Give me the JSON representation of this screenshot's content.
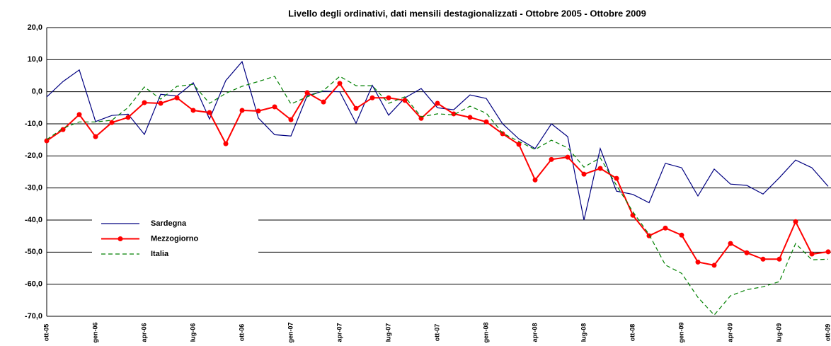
{
  "chart_data": {
    "type": "line",
    "title": "Livello degli ordinativi, dati mensili destagionalizzati - Ottobre 2005 - Ottobre 2009",
    "categories": [
      "ott-05",
      null,
      null,
      "gen-06",
      null,
      null,
      "apr-06",
      null,
      null,
      "lug-06",
      null,
      null,
      "ott-06",
      null,
      null,
      "gen-07",
      null,
      null,
      "apr-07",
      null,
      null,
      "lug-07",
      null,
      null,
      "ott-07",
      null,
      null,
      "gen-08",
      null,
      null,
      "apr-08",
      null,
      null,
      "lug-08",
      null,
      null,
      "ott-08",
      null,
      null,
      "gen-09",
      null,
      null,
      "apr-09",
      null,
      null,
      "lug-09",
      null,
      null,
      "ott-09"
    ],
    "ylim": [
      -70,
      20
    ],
    "yticks": [
      {
        "value": -70,
        "label": "-70,0"
      },
      {
        "value": -60,
        "label": "-60,0"
      },
      {
        "value": -50,
        "label": "-50,0"
      },
      {
        "value": -40,
        "label": "-40,0"
      },
      {
        "value": -30,
        "label": "-30,0"
      },
      {
        "value": -20,
        "label": "-20,0"
      },
      {
        "value": -10,
        "label": "-10,0"
      },
      {
        "value": 0,
        "label": "0,0"
      },
      {
        "value": 10,
        "label": "10,0"
      },
      {
        "value": 20,
        "label": "20,0"
      }
    ],
    "grid": true,
    "legend": true,
    "series": [
      {
        "name": "Sardegna",
        "color": "#000080",
        "dash": false,
        "marker": false,
        "values": [
          -1.6,
          3.2,
          6.8,
          -9.3,
          -7.4,
          -7.0,
          -13.3,
          -0.8,
          -1.3,
          2.8,
          -8.5,
          3.5,
          9.4,
          -8.2,
          -13.4,
          -13.8,
          -1.2,
          0.2,
          0,
          -9.8,
          2.0,
          -7.3,
          -1.9,
          1.0,
          -5.0,
          -5.6,
          -1.0,
          -2.1,
          -10.0,
          -14.7,
          -17.7,
          -10.0,
          -14.0,
          -40.0,
          -17.7,
          -31.0,
          -32.0,
          -34.6,
          -22.3,
          -23.7,
          -32.5,
          -24.1,
          -28.8,
          -29.2,
          -31.9,
          -26.8,
          -21.3,
          -23.7,
          -29.5
        ]
      },
      {
        "name": "Mezzogiorno",
        "color": "#ff0000",
        "dash": false,
        "marker": true,
        "values": [
          -15.3,
          -11.8,
          -7.1,
          -14.0,
          -9.6,
          -8.0,
          -3.4,
          -3.6,
          -1.9,
          -5.8,
          -6.5,
          -16.2,
          -5.8,
          -6.0,
          -4.7,
          -8.7,
          -0.3,
          -3.2,
          2.6,
          -5.2,
          -1.9,
          -1.9,
          -2.7,
          -8.3,
          -3.6,
          -6.9,
          -8.0,
          -9.4,
          -13.1,
          -16.4,
          -27.5,
          -21.1,
          -20.4,
          -25.7,
          -23.9,
          -27.0,
          -38.5,
          -44.9,
          -42.5,
          -44.7,
          -53.1,
          -54.1,
          -47.3,
          -50.2,
          -52.2,
          -52.2,
          -40.5,
          -50.6,
          -49.9
        ]
      },
      {
        "name": "Italia",
        "color": "#008000",
        "dash": true,
        "marker": false,
        "values": [
          -14.9,
          -11.4,
          -9.4,
          -9.4,
          -8.9,
          -4.9,
          1.5,
          -2.3,
          1.7,
          2.3,
          -3.6,
          -0.5,
          1.7,
          3.2,
          4.8,
          -3.8,
          -1.6,
          0.4,
          4.8,
          1.9,
          1.9,
          -3.6,
          -1.6,
          -7.8,
          -6.9,
          -7.2,
          -4.5,
          -6.7,
          -12.9,
          -15.5,
          -18.0,
          -15.1,
          -17.5,
          -23.5,
          -20.6,
          -29.2,
          -37.4,
          -44.5,
          -54.0,
          -56.6,
          -64.1,
          -69.6,
          -63.6,
          -61.7,
          -60.8,
          -59.2,
          -47.3,
          -52.4,
          -52.2
        ]
      }
    ]
  }
}
